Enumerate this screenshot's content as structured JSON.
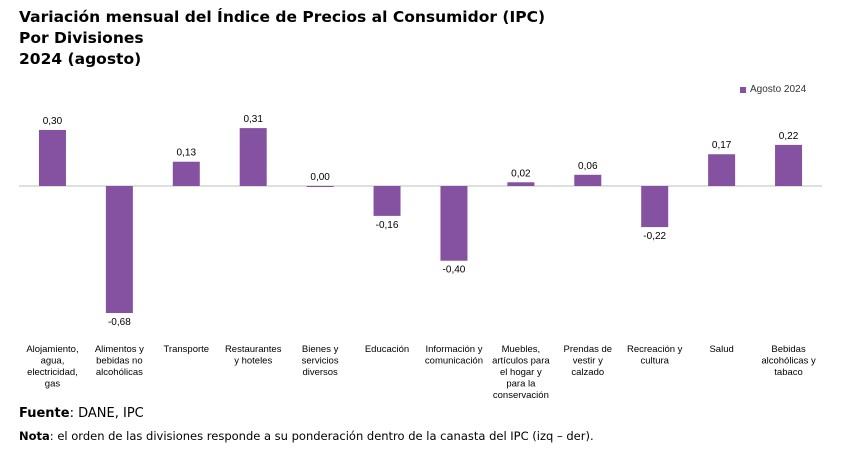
{
  "title_lines": [
    "Variación mensual del Índice de Precios al Consumidor (IPC)",
    "Por Divisiones",
    "2024 (agosto)"
  ],
  "footer": {
    "source_label": "Fuente",
    "source_text": ": DANE, IPC",
    "note_label": "Nota",
    "note_text": ": el orden de las divisiones responde a su ponderación dentro de la canasta del IPC (izq – der)."
  },
  "colors": {
    "bar": "#8552a1",
    "axis": "#bfbfbf",
    "text": "#000000"
  },
  "chart_data": {
    "type": "bar",
    "categories": [
      "Alojamiento, agua, electricidad, gas",
      "Alimentos y bebidas no alcohólicas",
      "Transporte",
      "Restaurantes y hoteles",
      "Bienes y servicios diversos",
      "Educación",
      "Información y comunicación",
      "Muebles, artículos para el hogar y para la conservación",
      "Prendas de vestir y calzado",
      "Recreación y cultura",
      "Salud",
      "Bebidas alcohólicas y tabaco"
    ],
    "category_label_lines": [
      [
        "Alojamiento,",
        "agua,",
        "electricidad,",
        "gas"
      ],
      [
        "Alimentos y",
        "bebidas no",
        "alcohólicas"
      ],
      [
        "Transporte"
      ],
      [
        "Restaurantes",
        "y hoteles"
      ],
      [
        "Bienes y",
        "servicios",
        "diversos"
      ],
      [
        "Educación"
      ],
      [
        "Información y",
        "comunicación"
      ],
      [
        "Muebles,",
        "artículos para",
        "el hogar y",
        "para la",
        "conservación"
      ],
      [
        "Prendas de",
        "vestir y",
        "calzado"
      ],
      [
        "Recreación y",
        "cultura"
      ],
      [
        "Salud"
      ],
      [
        "Bebidas",
        "alcohólicas y",
        "tabaco"
      ]
    ],
    "series": [
      {
        "name": "Agosto 2024",
        "values": [
          0.3,
          -0.68,
          0.13,
          0.31,
          0.0,
          -0.16,
          -0.4,
          0.02,
          0.06,
          -0.22,
          0.17,
          0.22
        ],
        "labels": [
          "0,30",
          "-0,68",
          "0,13",
          "0,31",
          "0,00",
          "-0,16",
          "-0,40",
          "0,02",
          "0,06",
          "-0,22",
          "0,17",
          "0,22"
        ]
      }
    ],
    "legend_position": "top-right",
    "grid": false,
    "ylim": [
      -0.68,
      0.31
    ]
  }
}
